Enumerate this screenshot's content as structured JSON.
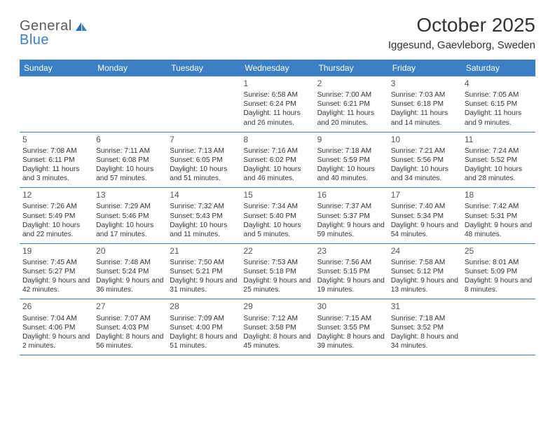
{
  "colors": {
    "header_bg": "#3b7fc4",
    "header_text": "#ffffff",
    "body_text": "#333333",
    "daynum_text": "#555555",
    "divider": "#3b7fc4",
    "logo_gray": "#5a5a5a",
    "logo_blue": "#3b7fc4",
    "background": "#ffffff"
  },
  "typography": {
    "title_fontsize_pt": 21,
    "location_fontsize_pt": 11,
    "dayheader_fontsize_pt": 9,
    "cell_fontsize_pt": 7.7,
    "daynum_fontsize_pt": 9
  },
  "logo": {
    "text1": "General",
    "text2": "Blue"
  },
  "title": "October 2025",
  "location": "Iggesund, Gaevleborg, Sweden",
  "day_headers": [
    "Sunday",
    "Monday",
    "Tuesday",
    "Wednesday",
    "Thursday",
    "Friday",
    "Saturday"
  ],
  "weeks": [
    [
      {
        "blank": true
      },
      {
        "blank": true
      },
      {
        "blank": true
      },
      {
        "num": "1",
        "sunrise": "Sunrise: 6:58 AM",
        "sunset": "Sunset: 6:24 PM",
        "daylight": "Daylight: 11 hours and 26 minutes."
      },
      {
        "num": "2",
        "sunrise": "Sunrise: 7:00 AM",
        "sunset": "Sunset: 6:21 PM",
        "daylight": "Daylight: 11 hours and 20 minutes."
      },
      {
        "num": "3",
        "sunrise": "Sunrise: 7:03 AM",
        "sunset": "Sunset: 6:18 PM",
        "daylight": "Daylight: 11 hours and 14 minutes."
      },
      {
        "num": "4",
        "sunrise": "Sunrise: 7:05 AM",
        "sunset": "Sunset: 6:15 PM",
        "daylight": "Daylight: 11 hours and 9 minutes."
      }
    ],
    [
      {
        "num": "5",
        "sunrise": "Sunrise: 7:08 AM",
        "sunset": "Sunset: 6:11 PM",
        "daylight": "Daylight: 11 hours and 3 minutes."
      },
      {
        "num": "6",
        "sunrise": "Sunrise: 7:11 AM",
        "sunset": "Sunset: 6:08 PM",
        "daylight": "Daylight: 10 hours and 57 minutes."
      },
      {
        "num": "7",
        "sunrise": "Sunrise: 7:13 AM",
        "sunset": "Sunset: 6:05 PM",
        "daylight": "Daylight: 10 hours and 51 minutes."
      },
      {
        "num": "8",
        "sunrise": "Sunrise: 7:16 AM",
        "sunset": "Sunset: 6:02 PM",
        "daylight": "Daylight: 10 hours and 46 minutes."
      },
      {
        "num": "9",
        "sunrise": "Sunrise: 7:18 AM",
        "sunset": "Sunset: 5:59 PM",
        "daylight": "Daylight: 10 hours and 40 minutes."
      },
      {
        "num": "10",
        "sunrise": "Sunrise: 7:21 AM",
        "sunset": "Sunset: 5:56 PM",
        "daylight": "Daylight: 10 hours and 34 minutes."
      },
      {
        "num": "11",
        "sunrise": "Sunrise: 7:24 AM",
        "sunset": "Sunset: 5:52 PM",
        "daylight": "Daylight: 10 hours and 28 minutes."
      }
    ],
    [
      {
        "num": "12",
        "sunrise": "Sunrise: 7:26 AM",
        "sunset": "Sunset: 5:49 PM",
        "daylight": "Daylight: 10 hours and 22 minutes."
      },
      {
        "num": "13",
        "sunrise": "Sunrise: 7:29 AM",
        "sunset": "Sunset: 5:46 PM",
        "daylight": "Daylight: 10 hours and 17 minutes."
      },
      {
        "num": "14",
        "sunrise": "Sunrise: 7:32 AM",
        "sunset": "Sunset: 5:43 PM",
        "daylight": "Daylight: 10 hours and 11 minutes."
      },
      {
        "num": "15",
        "sunrise": "Sunrise: 7:34 AM",
        "sunset": "Sunset: 5:40 PM",
        "daylight": "Daylight: 10 hours and 5 minutes."
      },
      {
        "num": "16",
        "sunrise": "Sunrise: 7:37 AM",
        "sunset": "Sunset: 5:37 PM",
        "daylight": "Daylight: 9 hours and 59 minutes."
      },
      {
        "num": "17",
        "sunrise": "Sunrise: 7:40 AM",
        "sunset": "Sunset: 5:34 PM",
        "daylight": "Daylight: 9 hours and 54 minutes."
      },
      {
        "num": "18",
        "sunrise": "Sunrise: 7:42 AM",
        "sunset": "Sunset: 5:31 PM",
        "daylight": "Daylight: 9 hours and 48 minutes."
      }
    ],
    [
      {
        "num": "19",
        "sunrise": "Sunrise: 7:45 AM",
        "sunset": "Sunset: 5:27 PM",
        "daylight": "Daylight: 9 hours and 42 minutes."
      },
      {
        "num": "20",
        "sunrise": "Sunrise: 7:48 AM",
        "sunset": "Sunset: 5:24 PM",
        "daylight": "Daylight: 9 hours and 36 minutes."
      },
      {
        "num": "21",
        "sunrise": "Sunrise: 7:50 AM",
        "sunset": "Sunset: 5:21 PM",
        "daylight": "Daylight: 9 hours and 31 minutes."
      },
      {
        "num": "22",
        "sunrise": "Sunrise: 7:53 AM",
        "sunset": "Sunset: 5:18 PM",
        "daylight": "Daylight: 9 hours and 25 minutes."
      },
      {
        "num": "23",
        "sunrise": "Sunrise: 7:56 AM",
        "sunset": "Sunset: 5:15 PM",
        "daylight": "Daylight: 9 hours and 19 minutes."
      },
      {
        "num": "24",
        "sunrise": "Sunrise: 7:58 AM",
        "sunset": "Sunset: 5:12 PM",
        "daylight": "Daylight: 9 hours and 13 minutes."
      },
      {
        "num": "25",
        "sunrise": "Sunrise: 8:01 AM",
        "sunset": "Sunset: 5:09 PM",
        "daylight": "Daylight: 9 hours and 8 minutes."
      }
    ],
    [
      {
        "num": "26",
        "sunrise": "Sunrise: 7:04 AM",
        "sunset": "Sunset: 4:06 PM",
        "daylight": "Daylight: 9 hours and 2 minutes."
      },
      {
        "num": "27",
        "sunrise": "Sunrise: 7:07 AM",
        "sunset": "Sunset: 4:03 PM",
        "daylight": "Daylight: 8 hours and 56 minutes."
      },
      {
        "num": "28",
        "sunrise": "Sunrise: 7:09 AM",
        "sunset": "Sunset: 4:00 PM",
        "daylight": "Daylight: 8 hours and 51 minutes."
      },
      {
        "num": "29",
        "sunrise": "Sunrise: 7:12 AM",
        "sunset": "Sunset: 3:58 PM",
        "daylight": "Daylight: 8 hours and 45 minutes."
      },
      {
        "num": "30",
        "sunrise": "Sunrise: 7:15 AM",
        "sunset": "Sunset: 3:55 PM",
        "daylight": "Daylight: 8 hours and 39 minutes."
      },
      {
        "num": "31",
        "sunrise": "Sunrise: 7:18 AM",
        "sunset": "Sunset: 3:52 PM",
        "daylight": "Daylight: 8 hours and 34 minutes."
      },
      {
        "blank": true
      }
    ]
  ]
}
